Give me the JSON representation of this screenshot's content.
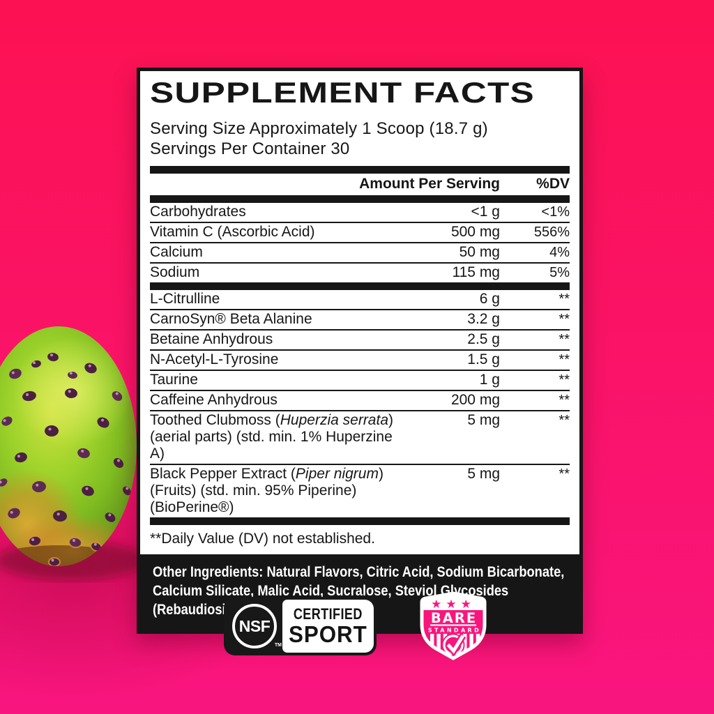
{
  "label": {
    "title": "SUPPLEMENT FACTS",
    "serving_size": "Serving Size Approximately 1 Scoop (18.7 g)",
    "servings_per_container": "Servings Per Container 30",
    "columns": {
      "amount": "Amount Per Serving",
      "dv": "%DV"
    },
    "nutrients": [
      {
        "name": "Carbohydrates",
        "amount": "<1 g",
        "dv": "<1%"
      },
      {
        "name": "Vitamin C (Ascorbic Acid)",
        "amount": "500 mg",
        "dv": "556%"
      },
      {
        "name": "Calcium",
        "amount": "50 mg",
        "dv": "4%"
      },
      {
        "name": "Sodium",
        "amount": "115 mg",
        "dv": "5%"
      }
    ],
    "actives": [
      {
        "name": "L-Citrulline",
        "amount": "6 g",
        "dv": "**"
      },
      {
        "name": "CarnoSyn® Beta Alanine",
        "amount": "3.2 g",
        "dv": "**"
      },
      {
        "name": "Betaine Anhydrous",
        "amount": "2.5 g",
        "dv": "**"
      },
      {
        "name": "N-Acetyl-L-Tyrosine",
        "amount": "1.5 g",
        "dv": "**"
      },
      {
        "name": "Taurine",
        "amount": "1 g",
        "dv": "**"
      },
      {
        "name": "Caffeine Anhydrous",
        "amount": "200 mg",
        "dv": "**"
      },
      {
        "name": [
          {
            "t": "Toothed Clubmoss ("
          },
          {
            "t": "Huperzia serrata",
            "i": true
          },
          {
            "t": ")(aerial parts) (std. min. 1% Huperzine A)"
          }
        ],
        "amount": "5 mg",
        "dv": "**"
      },
      {
        "name": [
          {
            "t": "Black Pepper Extract ("
          },
          {
            "t": "Piper nigrum",
            "i": true
          },
          {
            "t": ") (Fruits) (std. min. 95% Piperine) (BioPerine®)"
          }
        ],
        "amount": "5 mg",
        "dv": "**"
      }
    ],
    "footnote": "**Daily Value (DV) not established.",
    "other_ingredients_label": "Other Ingredients:",
    "other_ingredients_text": " Natural Flavors, Citric Acid, Sodium Bicarbonate, Calcium Silicate, Malic Acid, Sucralose, Steviol Glycosides (Rebaudioside M)."
  },
  "badges": {
    "nsf": {
      "circle_text": "NSF",
      "trademark": "TM",
      "line1": "CERTIFIED",
      "line2": "SPORT"
    },
    "bare": {
      "stars": "★★★",
      "title": "BARE",
      "subtitle": "STANDARD"
    }
  },
  "colors": {
    "background_top": "#fc1252",
    "background_mid": "#fa1366",
    "background_bottom": "#f9157f",
    "label_black": "#161616",
    "label_white": "#ffffff",
    "badge_pink": "#f8167d"
  }
}
